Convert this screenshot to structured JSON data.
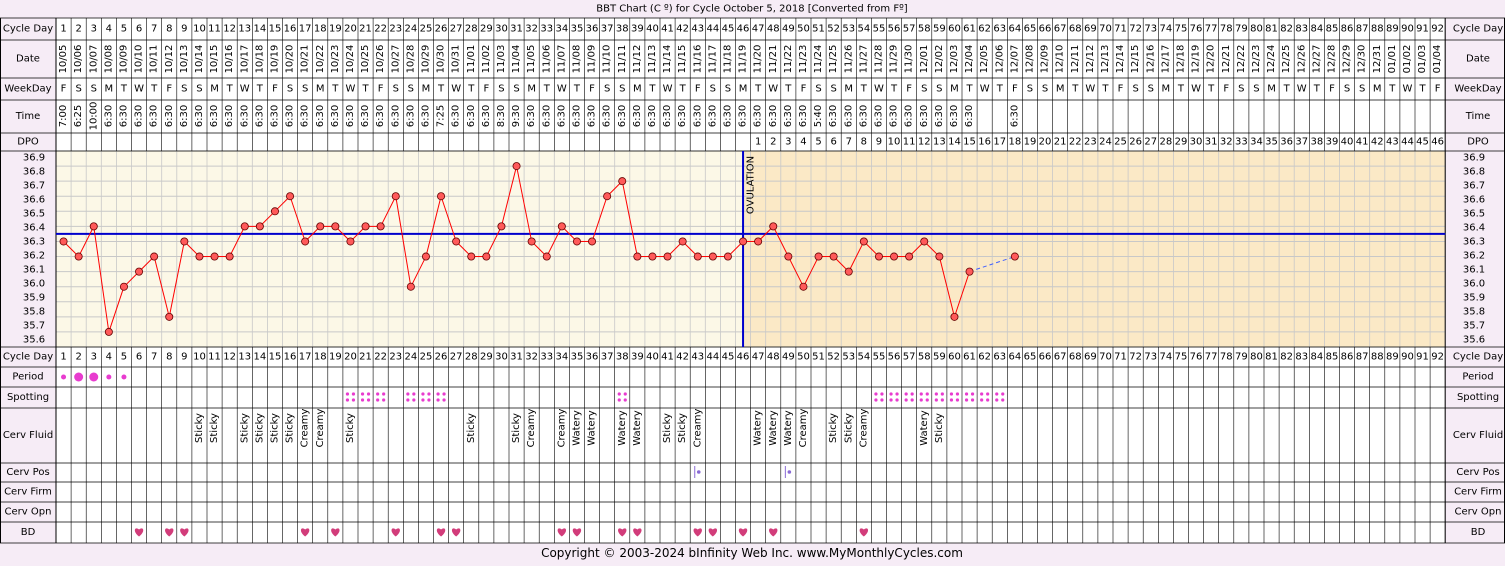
{
  "title": "BBT Chart (C º) for Cycle October 5, 2018  [Converted from Fº]",
  "copyright": "Copyright © 2003-2024 bInfinity Web Inc.     www.MyMonthlyCycles.com",
  "ovulation_label": "OVULATION",
  "row_labels": {
    "cycle_day": "Cycle Day",
    "date": "Date",
    "weekday": "WeekDay",
    "time": "Time",
    "dpo": "DPO",
    "period": "Period",
    "spotting": "Spotting",
    "cerv_fluid": "Cerv Fluid",
    "cerv_pos": "Cerv Pos",
    "cerv_firm": "Cerv Firm",
    "cerv_opn": "Cerv Opn",
    "bd": "BD"
  },
  "colors": {
    "line": "#ff0000",
    "point_fill": "#ff5a5a",
    "coverline": "#0000cc",
    "ovulation": "#0000cc",
    "pre_bg": "#fcf8e7",
    "post_bg": "#fbe9c6",
    "grid": "#c8c8c8",
    "marker": "#e83ccf",
    "heart": "#d23c7a"
  },
  "chart_data": {
    "type": "line",
    "title": "BBT Chart (C º) for Cycle October 5, 2018  [Converted from Fº]",
    "xlabel": "Cycle Day",
    "ylabel": "",
    "ylim": [
      35.6,
      36.9
    ],
    "yticks": [
      "36.9",
      "36.8",
      "36.7",
      "36.6",
      "36.5",
      "36.4",
      "36.3",
      "36.2",
      "36.1",
      "36.0",
      "35.9",
      "35.8",
      "35.7",
      "35.6"
    ],
    "coverline": 36.35,
    "ovulation_day": 46,
    "x": [
      1,
      2,
      3,
      4,
      5,
      6,
      7,
      8,
      9,
      10,
      11,
      12,
      13,
      14,
      15,
      16,
      17,
      18,
      19,
      20,
      21,
      22,
      23,
      24,
      25,
      26,
      27,
      28,
      29,
      30,
      31,
      32,
      33,
      34,
      35,
      36,
      37,
      38,
      39,
      40,
      41,
      42,
      43,
      44,
      45,
      46,
      47,
      48,
      49,
      50,
      51,
      52,
      53,
      54,
      55,
      56,
      57,
      58,
      59,
      60,
      61,
      62,
      63,
      64
    ],
    "series": [
      {
        "values": [
          36.3,
          36.2,
          36.4,
          35.7,
          36.0,
          36.1,
          36.2,
          35.8,
          36.3,
          36.2,
          36.2,
          36.2,
          36.4,
          36.4,
          36.5,
          36.6,
          36.3,
          36.4,
          36.4,
          36.3,
          36.4,
          36.4,
          36.6,
          36.0,
          36.2,
          36.6,
          36.3,
          36.2,
          36.2,
          36.4,
          36.8,
          36.3,
          36.2,
          36.4,
          36.3,
          36.3,
          36.6,
          36.7,
          36.2,
          36.2,
          36.2,
          36.3,
          36.2,
          36.2,
          36.2,
          36.3,
          36.3,
          36.4,
          36.2,
          36.0,
          36.2,
          36.2,
          36.1,
          36.3,
          36.2,
          36.2,
          36.2,
          36.3,
          36.2,
          35.8,
          36.1,
          null,
          null,
          36.2
        ]
      }
    ],
    "cycle_days": [
      "1",
      "2",
      "3",
      "4",
      "5",
      "6",
      "7",
      "8",
      "9",
      "10",
      "11",
      "12",
      "13",
      "14",
      "15",
      "16",
      "17",
      "18",
      "19",
      "20",
      "21",
      "22",
      "23",
      "24",
      "25",
      "26",
      "27",
      "28",
      "29",
      "30",
      "31",
      "32",
      "33",
      "34",
      "35",
      "36",
      "37",
      "38",
      "39",
      "40",
      "41",
      "42",
      "43",
      "44",
      "45",
      "46",
      "47",
      "48",
      "49",
      "50",
      "51",
      "52",
      "53",
      "54",
      "55",
      "56",
      "57",
      "58",
      "59",
      "60",
      "61",
      "62",
      "63",
      "64",
      "65",
      "66",
      "67",
      "68",
      "69",
      "70",
      "71",
      "72",
      "73",
      "74",
      "75",
      "76",
      "77",
      "78",
      "79",
      "80",
      "81",
      "82",
      "83",
      "84",
      "85",
      "86",
      "87",
      "88",
      "89",
      "90",
      "91",
      "92"
    ],
    "dates": [
      "10/05",
      "10/06",
      "10/07",
      "10/08",
      "10/09",
      "10/10",
      "10/11",
      "10/12",
      "10/13",
      "10/14",
      "10/15",
      "10/16",
      "10/17",
      "10/18",
      "10/19",
      "10/20",
      "10/21",
      "10/22",
      "10/23",
      "10/24",
      "10/25",
      "10/26",
      "10/27",
      "10/28",
      "10/29",
      "10/30",
      "10/31",
      "11/01",
      "11/02",
      "11/03",
      "11/04",
      "11/05",
      "11/06",
      "11/07",
      "11/08",
      "11/09",
      "11/10",
      "11/11",
      "11/12",
      "11/13",
      "11/14",
      "11/15",
      "11/16",
      "11/17",
      "11/18",
      "11/19",
      "11/20",
      "11/21",
      "11/22",
      "11/23",
      "11/24",
      "11/25",
      "11/26",
      "11/27",
      "11/28",
      "11/29",
      "11/30",
      "12/01",
      "12/02",
      "12/03",
      "12/04",
      "12/05",
      "12/06",
      "12/07",
      "12/08",
      "12/09",
      "12/10",
      "12/11",
      "12/12",
      "12/13",
      "12/14",
      "12/15",
      "12/16",
      "12/17",
      "12/18",
      "12/19",
      "12/20",
      "12/21",
      "12/22",
      "12/23",
      "12/24",
      "12/25",
      "12/26",
      "12/27",
      "12/28",
      "12/29",
      "12/30",
      "12/31",
      "01/01",
      "01/02",
      "01/03",
      "01/04"
    ],
    "weekdays": [
      "F",
      "S",
      "S",
      "M",
      "T",
      "W",
      "T",
      "F",
      "S",
      "S",
      "M",
      "T",
      "W",
      "T",
      "F",
      "S",
      "S",
      "M",
      "T",
      "W",
      "T",
      "F",
      "S",
      "S",
      "M",
      "T",
      "W",
      "T",
      "F",
      "S",
      "S",
      "M",
      "T",
      "W",
      "T",
      "F",
      "S",
      "S",
      "M",
      "T",
      "W",
      "T",
      "F",
      "S",
      "S",
      "M",
      "T",
      "W",
      "T",
      "F",
      "S",
      "S",
      "M",
      "T",
      "W",
      "T",
      "F",
      "S",
      "S",
      "M",
      "T",
      "W",
      "T",
      "F",
      "S",
      "S",
      "M",
      "T",
      "W",
      "T",
      "F",
      "S",
      "S",
      "M",
      "T",
      "W",
      "T",
      "F",
      "S",
      "S",
      "M",
      "T",
      "W",
      "T",
      "F",
      "S",
      "S",
      "M",
      "T",
      "W",
      "T",
      "F"
    ],
    "times": [
      "7:00",
      "6:25",
      "10:00",
      "6:30",
      "6:30",
      "6:30",
      "6:30",
      "6:30",
      "6:30",
      "6:30",
      "6:30",
      "6:30",
      "6:30",
      "6:30",
      "6:30",
      "6:30",
      "6:30",
      "6:30",
      "6:30",
      "6:30",
      "6:30",
      "6:30",
      "6:30",
      "6:30",
      "6:30",
      "7:25",
      "6:30",
      "6:30",
      "6:30",
      "8:30",
      "9:30",
      "6:30",
      "6:30",
      "6:30",
      "6:30",
      "6:30",
      "6:30",
      "6:30",
      "6:30",
      "6:30",
      "6:30",
      "6:30",
      "6:30",
      "6:30",
      "6:30",
      "6:30",
      "6:30",
      "6:30",
      "6:30",
      "6:30",
      "5:40",
      "6:30",
      "6:30",
      "6:30",
      "6:30",
      "6:30",
      "6:30",
      "6:30",
      "6:30",
      "6:30",
      "6:30",
      "",
      "",
      "6:30"
    ],
    "dpo": [
      "",
      "",
      "",
      "",
      "",
      "",
      "",
      "",
      "",
      "",
      "",
      "",
      "",
      "",
      "",
      "",
      "",
      "",
      "",
      "",
      "",
      "",
      "",
      "",
      "",
      "",
      "",
      "",
      "",
      "",
      "",
      "",
      "",
      "",
      "",
      "",
      "",
      "",
      "",
      "",
      "",
      "",
      "",
      "",
      "",
      "",
      "1",
      "2",
      "3",
      "4",
      "5",
      "6",
      "7",
      "8",
      "9",
      "10",
      "11",
      "12",
      "13",
      "14",
      "15",
      "16",
      "17",
      "18",
      "19",
      "20",
      "21",
      "22",
      "23",
      "24",
      "25",
      "26",
      "27",
      "28",
      "29",
      "30",
      "31",
      "32",
      "33",
      "34",
      "35",
      "36",
      "37",
      "38",
      "39",
      "40",
      "41",
      "42",
      "43",
      "44",
      "45",
      "46"
    ],
    "period": {
      "1": "small",
      "2": "large",
      "3": "large",
      "4": "small",
      "5": "small"
    },
    "spotting_days": [
      20,
      21,
      22,
      24,
      25,
      26,
      38,
      55,
      56,
      57,
      58,
      59,
      60,
      61,
      62,
      63
    ],
    "cerv_fluid": {
      "10": "Sticky",
      "11": "Sticky",
      "13": "Sticky",
      "14": "Sticky",
      "15": "Sticky",
      "16": "Sticky",
      "17": "Creamy",
      "18": "Creamy",
      "20": "Sticky",
      "28": "Sticky",
      "31": "Sticky",
      "32": "Creamy",
      "34": "Creamy",
      "35": "Watery",
      "36": "Watery",
      "38": "Watery",
      "39": "Watery",
      "41": "Sticky",
      "42": "Sticky",
      "43": "Creamy",
      "47": "Watery",
      "48": "Watery",
      "49": "Watery",
      "50": "Creamy",
      "52": "Sticky",
      "53": "Sticky",
      "54": "Creamy",
      "58": "Watery",
      "59": "Sticky"
    },
    "cerv_pos_days": [
      43,
      49
    ],
    "bd_days": [
      6,
      8,
      9,
      17,
      19,
      23,
      26,
      27,
      34,
      35,
      38,
      39,
      43,
      44,
      46,
      48,
      54
    ]
  }
}
